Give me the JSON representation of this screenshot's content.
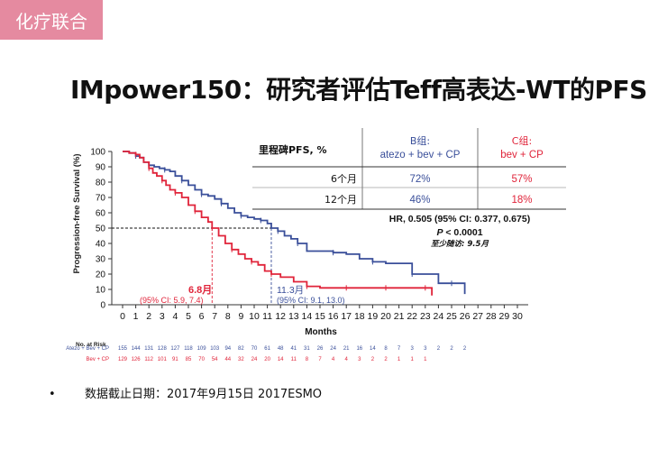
{
  "tag": "化疗联合",
  "title": "IMpower150：研究者评估Teff高表达-WT的PFS",
  "footnote": {
    "bullet": "•",
    "text": "数据截止日期：2017年9月15日 2017ESMO"
  },
  "table": {
    "header_label": "里程碑PFS, %",
    "group_b_title": "B组:",
    "group_b_regimen": "atezo + bev + CP",
    "group_c_title": "C组:",
    "group_c_regimen": "bev + CP",
    "rows": [
      {
        "label": "6个月",
        "b": "72%",
        "c": "57%"
      },
      {
        "label": "12个月",
        "b": "46%",
        "c": "18%"
      }
    ]
  },
  "stats": {
    "hr": "HR, 0.505 (95% CI: 0.377, 0.675)",
    "p_prefix": "P",
    "p_rest": " < 0.0001",
    "followup": "至少随访: 9.5月"
  },
  "median_red": {
    "label": "6.8月",
    "ci": "(95% CI: 5.9, 7.4)"
  },
  "median_blue": {
    "label": "11.3月",
    "ci": "(95% CI: 9.1, 13.0)"
  },
  "risk": {
    "title": "No. at Risk",
    "blue_label": "Atezo + Bev + CP",
    "red_label": "Bev + CP",
    "blue_values": [
      "155",
      "144",
      "131",
      "128",
      "127",
      "118",
      "109",
      "103",
      "94",
      "82",
      "70",
      "61",
      "48",
      "41",
      "31",
      "26",
      "24",
      "21",
      "16",
      "14",
      "8",
      "7",
      "3",
      "3",
      "2",
      "2",
      "2"
    ],
    "red_values": [
      "129",
      "126",
      "112",
      "101",
      "91",
      "85",
      "70",
      "54",
      "44",
      "32",
      "24",
      "20",
      "14",
      "11",
      "8",
      "7",
      "4",
      "4",
      "3",
      "2",
      "2",
      "1",
      "1",
      "1"
    ]
  },
  "colors": {
    "blue": "#3a4f9a",
    "red": "#e0243a",
    "tag_bg": "#e58aa0"
  },
  "chart_data": {
    "type": "line",
    "xlabel": "Months",
    "ylabel": "Progression-free Survival (%)",
    "xlim": [
      0,
      30
    ],
    "ylim": [
      0,
      100
    ],
    "xticks": [
      0,
      1,
      2,
      3,
      4,
      5,
      6,
      7,
      8,
      9,
      10,
      11,
      12,
      13,
      14,
      15,
      16,
      17,
      18,
      19,
      20,
      21,
      22,
      23,
      24,
      25,
      26,
      27,
      28,
      29,
      30
    ],
    "yticks": [
      0,
      10,
      20,
      30,
      40,
      50,
      60,
      70,
      80,
      90,
      100
    ],
    "median_line_y": 50,
    "series": [
      {
        "name": "atezo + bev + CP",
        "color": "#3a4f9a",
        "median": 11.3,
        "x": [
          0,
          0.5,
          1,
          1.3,
          1.6,
          2,
          2.4,
          2.8,
          3.2,
          3.6,
          4,
          4.5,
          5,
          5.5,
          6,
          6.5,
          7,
          7.5,
          8,
          8.5,
          9,
          9.5,
          10,
          10.5,
          11,
          11.3,
          11.8,
          12.3,
          12.8,
          13.3,
          14,
          15,
          16,
          17,
          18,
          19,
          20,
          21,
          22,
          23,
          24,
          25,
          26
        ],
        "y": [
          100,
          99,
          97,
          96,
          93,
          91,
          90,
          89,
          88,
          87,
          84,
          81,
          78,
          75,
          72,
          71,
          69,
          66,
          63,
          60,
          58,
          57,
          56,
          55,
          53,
          50,
          48,
          45,
          43,
          40,
          35,
          35,
          34,
          33,
          30,
          28,
          27,
          27,
          20,
          20,
          14,
          14,
          7
        ]
      },
      {
        "name": "bev + CP",
        "color": "#e0243a",
        "median": 6.8,
        "x": [
          0,
          0.5,
          1,
          1.3,
          1.6,
          2,
          2.3,
          2.6,
          3,
          3.3,
          3.6,
          4,
          4.5,
          5,
          5.5,
          6,
          6.5,
          6.8,
          7.3,
          7.8,
          8.3,
          8.8,
          9.3,
          9.8,
          10.3,
          10.8,
          11.3,
          12,
          13,
          14,
          15,
          16,
          17,
          18,
          19,
          20,
          21,
          22,
          23,
          23.5
        ],
        "y": [
          100,
          99,
          98,
          96,
          93,
          89,
          86,
          84,
          81,
          78,
          75,
          73,
          70,
          65,
          61,
          57,
          54,
          50,
          45,
          40,
          36,
          33,
          30,
          28,
          26,
          22,
          20,
          18,
          15,
          12,
          11,
          11,
          11,
          11,
          11,
          11,
          11,
          11,
          11,
          6
        ]
      }
    ]
  }
}
